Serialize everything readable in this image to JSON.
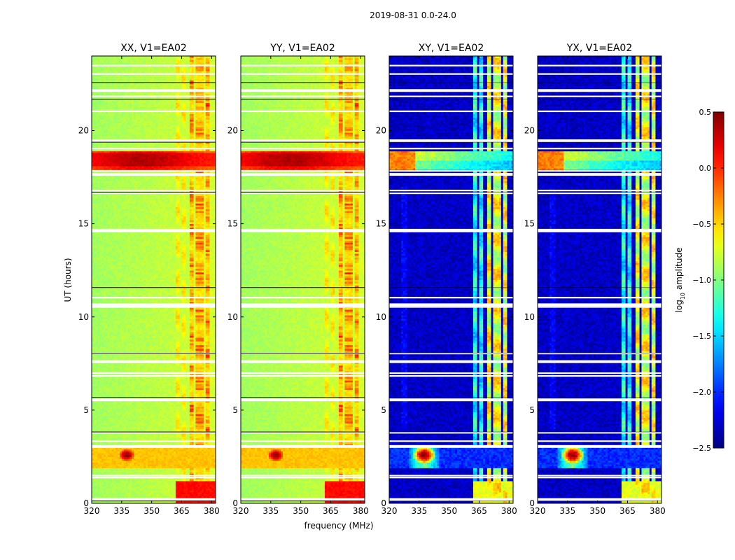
{
  "chart_data": {
    "type": "heatmap",
    "suptitle": "2019-08-31 0.0-24.0",
    "xlabel": "frequency (MHz)",
    "ylabel": "UT (hours)",
    "xlim": [
      320,
      382
    ],
    "ylim": [
      0,
      24
    ],
    "xticks": [
      320,
      335,
      350,
      365,
      380
    ],
    "yticks": [
      0,
      5,
      10,
      15,
      20
    ],
    "panels": [
      {
        "title": "XX, V1=EA02",
        "kind": "parallel",
        "show_xlabel": false
      },
      {
        "title": "YY, V1=EA02",
        "kind": "parallel",
        "show_xlabel": true
      },
      {
        "title": "XY, V1=EA02",
        "kind": "cross",
        "show_xlabel": false
      },
      {
        "title": "YX, V1=EA02",
        "kind": "cross",
        "show_xlabel": false
      }
    ],
    "colorbar": {
      "label": "log10 amplitude",
      "label_main": "log",
      "label_sub": "10",
      "label_rest": " amplitude",
      "range": [
        -2.5,
        0.5
      ],
      "ticks": [
        "0.5",
        "0.0",
        "−0.5",
        "−1.0",
        "−1.5",
        "−2.0",
        "−2.5"
      ],
      "tick_values": [
        0.5,
        0.0,
        -0.5,
        -1.0,
        -1.5,
        -2.0,
        -2.5
      ],
      "colormap": "jet"
    },
    "features": {
      "strong_band_hours": [
        17.9,
        18.9
      ],
      "burst_band_hours": [
        1.9,
        3.0
      ],
      "burst_center": {
        "freq_mhz": 337.5,
        "ut_hours": 2.6
      },
      "rfi_channels_mhz": [
        363,
        366,
        370,
        374,
        378
      ],
      "gap_hours": [
        0.2,
        1.35,
        1.45,
        3.05,
        3.3,
        3.75,
        5.55,
        6.8,
        6.95,
        7.6,
        8.0,
        10.5,
        10.65,
        11.0,
        14.55,
        14.65,
        16.6,
        16.75,
        17.65,
        17.8,
        19.0,
        19.45,
        21.0,
        21.8,
        22.15,
        23.0,
        23.45
      ]
    }
  }
}
